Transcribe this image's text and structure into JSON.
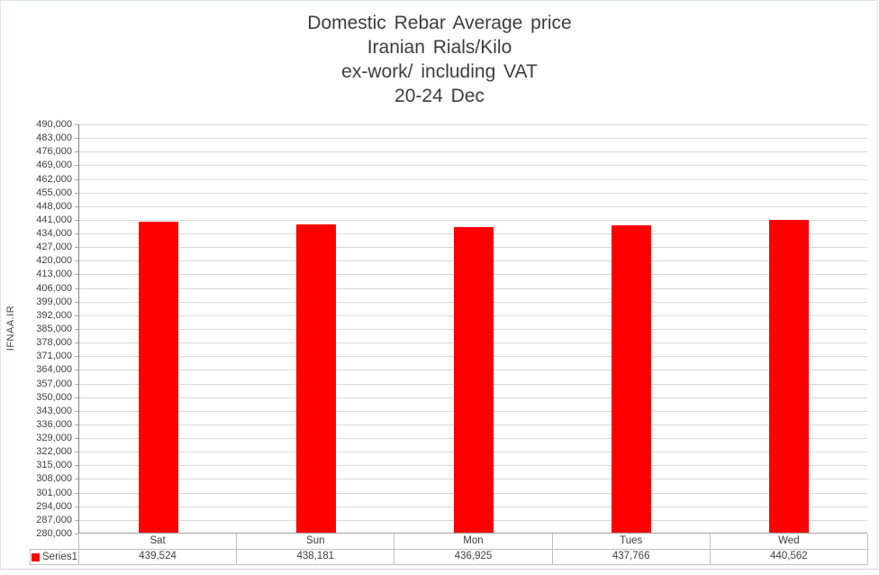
{
  "title": {
    "lines": [
      "Domestic Rebar Average price",
      "Iranian Rials/Kilo",
      "ex-work/ including VAT",
      "20-24 Dec"
    ]
  },
  "legend": {
    "label": "Series1",
    "marker_color": "#FF0000"
  },
  "chart_data": {
    "type": "bar",
    "categories": [
      "Sat",
      "Sun",
      "Mon",
      "Tues",
      "Wed"
    ],
    "series": [
      {
        "name": "Series1",
        "values": [
          439524,
          438181,
          436925,
          437766,
          440562
        ]
      }
    ],
    "title": "Domestic Rebar Average price\nIranian Rials/Kilo\nex-work/ including VAT\n20-24 Dec",
    "xlabel": "",
    "ylabel": "IFNAA.IR",
    "ylim": [
      280000,
      490000
    ],
    "ytick_step": 7000,
    "ytick_format": "thousands-comma",
    "bar_color": "#FF0000",
    "grid": true,
    "gridline_color": "#d9d9d9",
    "legend_position": "data-table-left",
    "data_table": true
  }
}
